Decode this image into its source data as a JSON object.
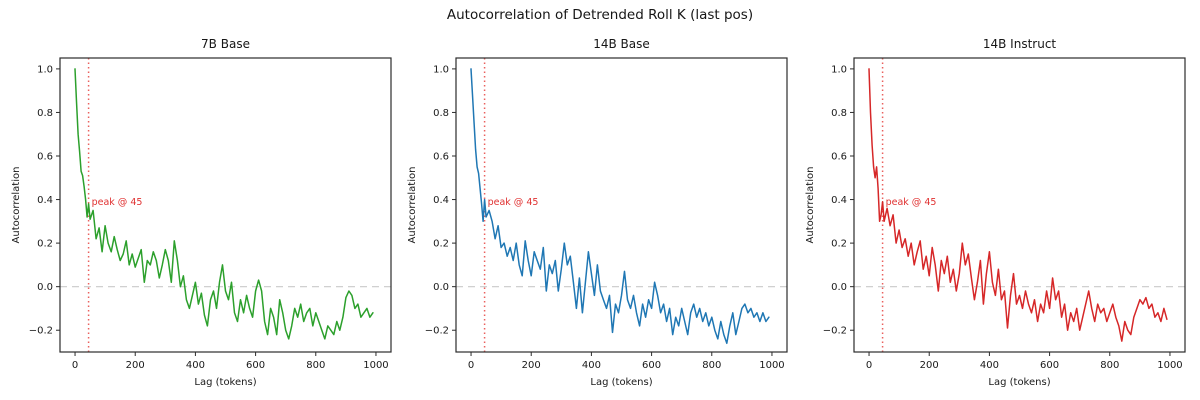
{
  "chart_data": {
    "type": "line",
    "suptitle": "Autocorrelation of Detrended Roll K (last pos)",
    "layout": "three side-by-side subplots, one series each",
    "xlabel": "Lag (tokens)",
    "ylabel": "Autocorrelation",
    "xlim": [
      -50,
      1050
    ],
    "ylim": [
      -0.3,
      1.05
    ],
    "xticks": [
      0,
      200,
      400,
      600,
      800,
      1000
    ],
    "yticks": [
      -0.2,
      0.0,
      0.2,
      0.4,
      0.6,
      0.8,
      1.0
    ],
    "grid": false,
    "zero_line": {
      "y": 0.0,
      "style": "dashed",
      "color": "#c9c9c9"
    },
    "peak_vline": {
      "x": 45,
      "style": "dotted",
      "color": "#e53935",
      "label": "peak @ 45",
      "label_color": "#e03131"
    },
    "x": [
      0,
      5,
      10,
      15,
      20,
      25,
      30,
      35,
      40,
      45,
      50,
      60,
      70,
      80,
      90,
      100,
      110,
      120,
      130,
      140,
      150,
      160,
      170,
      180,
      190,
      200,
      210,
      220,
      230,
      240,
      250,
      260,
      270,
      280,
      290,
      300,
      310,
      320,
      330,
      340,
      350,
      360,
      370,
      380,
      390,
      400,
      410,
      420,
      430,
      440,
      450,
      460,
      470,
      480,
      490,
      500,
      510,
      520,
      530,
      540,
      550,
      560,
      570,
      580,
      590,
      600,
      610,
      620,
      630,
      640,
      650,
      660,
      670,
      680,
      690,
      700,
      710,
      720,
      730,
      740,
      750,
      760,
      770,
      780,
      790,
      800,
      810,
      820,
      830,
      840,
      850,
      860,
      870,
      880,
      890,
      900,
      910,
      920,
      930,
      940,
      950,
      960,
      970,
      980,
      990
    ],
    "series": [
      {
        "name": "7B Base",
        "color": "#2ca02c",
        "values": [
          1.0,
          0.85,
          0.7,
          0.62,
          0.53,
          0.51,
          0.46,
          0.4,
          0.32,
          0.38,
          0.31,
          0.35,
          0.22,
          0.27,
          0.16,
          0.28,
          0.2,
          0.16,
          0.23,
          0.17,
          0.12,
          0.15,
          0.21,
          0.1,
          0.15,
          0.09,
          0.13,
          0.17,
          0.02,
          0.12,
          0.1,
          0.16,
          0.12,
          0.04,
          0.1,
          0.17,
          0.12,
          0.02,
          0.21,
          0.12,
          0.0,
          0.05,
          -0.06,
          -0.1,
          -0.04,
          0.02,
          -0.08,
          -0.03,
          -0.13,
          -0.18,
          -0.06,
          -0.02,
          -0.1,
          0.02,
          0.1,
          -0.02,
          -0.06,
          0.02,
          -0.12,
          -0.16,
          -0.06,
          -0.12,
          -0.04,
          -0.1,
          -0.14,
          -0.02,
          0.03,
          -0.02,
          -0.16,
          -0.22,
          -0.1,
          -0.14,
          -0.22,
          -0.06,
          -0.12,
          -0.2,
          -0.24,
          -0.18,
          -0.1,
          -0.14,
          -0.08,
          -0.16,
          -0.12,
          -0.1,
          -0.18,
          -0.12,
          -0.16,
          -0.2,
          -0.24,
          -0.18,
          -0.2,
          -0.22,
          -0.16,
          -0.2,
          -0.14,
          -0.05,
          -0.02,
          -0.04,
          -0.1,
          -0.08,
          -0.14,
          -0.12,
          -0.1,
          -0.14,
          -0.12
        ]
      },
      {
        "name": "14B Base",
        "color": "#1f77b4",
        "values": [
          1.0,
          0.88,
          0.75,
          0.63,
          0.55,
          0.52,
          0.45,
          0.38,
          0.3,
          0.4,
          0.32,
          0.35,
          0.3,
          0.22,
          0.28,
          0.18,
          0.2,
          0.14,
          0.18,
          0.12,
          0.2,
          0.1,
          0.05,
          0.21,
          0.12,
          0.05,
          0.16,
          0.12,
          0.08,
          0.18,
          -0.02,
          0.1,
          0.06,
          0.12,
          -0.02,
          0.08,
          0.2,
          0.1,
          0.14,
          0.02,
          -0.1,
          0.04,
          -0.12,
          0.02,
          0.16,
          0.06,
          -0.04,
          0.1,
          -0.02,
          -0.06,
          -0.1,
          -0.04,
          -0.21,
          -0.08,
          -0.12,
          -0.04,
          0.07,
          -0.06,
          -0.1,
          -0.04,
          -0.12,
          -0.18,
          -0.08,
          -0.14,
          -0.06,
          -0.1,
          0.02,
          -0.04,
          -0.12,
          -0.08,
          -0.16,
          -0.1,
          -0.22,
          -0.14,
          -0.18,
          -0.1,
          -0.16,
          -0.22,
          -0.12,
          -0.08,
          -0.14,
          -0.1,
          -0.16,
          -0.12,
          -0.18,
          -0.14,
          -0.2,
          -0.24,
          -0.16,
          -0.22,
          -0.26,
          -0.18,
          -0.12,
          -0.22,
          -0.16,
          -0.1,
          -0.08,
          -0.12,
          -0.1,
          -0.14,
          -0.12,
          -0.16,
          -0.12,
          -0.16,
          -0.14
        ]
      },
      {
        "name": "14B Instruct",
        "color": "#d62728",
        "values": [
          1.0,
          0.8,
          0.65,
          0.55,
          0.5,
          0.55,
          0.45,
          0.3,
          0.33,
          0.39,
          0.3,
          0.36,
          0.28,
          0.33,
          0.2,
          0.26,
          0.18,
          0.22,
          0.14,
          0.2,
          0.1,
          0.16,
          0.21,
          0.08,
          0.14,
          0.05,
          0.18,
          0.1,
          -0.02,
          0.12,
          0.06,
          0.14,
          0.02,
          0.08,
          -0.02,
          0.06,
          0.2,
          0.1,
          0.15,
          0.04,
          -0.06,
          0.02,
          0.12,
          -0.08,
          0.06,
          0.16,
          0.02,
          -0.04,
          0.08,
          -0.06,
          -0.02,
          -0.19,
          -0.04,
          0.06,
          -0.08,
          -0.04,
          -0.1,
          -0.02,
          -0.08,
          -0.12,
          -0.06,
          -0.16,
          -0.08,
          -0.12,
          -0.02,
          -0.1,
          0.04,
          -0.06,
          -0.02,
          -0.14,
          -0.08,
          -0.2,
          -0.12,
          -0.16,
          -0.1,
          -0.2,
          -0.14,
          -0.08,
          -0.02,
          -0.1,
          -0.16,
          -0.08,
          -0.12,
          -0.1,
          -0.16,
          -0.12,
          -0.08,
          -0.14,
          -0.18,
          -0.25,
          -0.16,
          -0.2,
          -0.22,
          -0.14,
          -0.1,
          -0.06,
          -0.08,
          -0.05,
          -0.1,
          -0.08,
          -0.14,
          -0.12,
          -0.16,
          -0.1,
          -0.15
        ]
      }
    ]
  }
}
